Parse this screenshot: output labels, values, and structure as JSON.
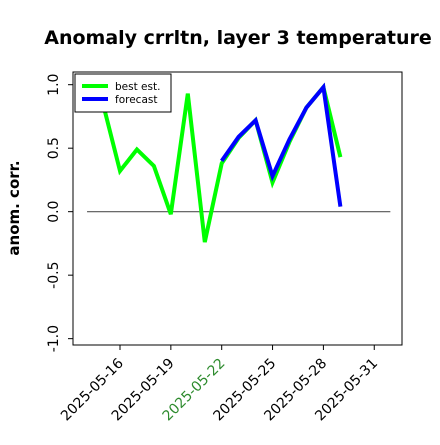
{
  "chart_data": {
    "type": "line",
    "title": "Anomaly crrltn, layer 3 temperature",
    "xlabel": "",
    "ylabel": "anom. corr.",
    "ylim": [
      -1.05,
      1.1
    ],
    "yticks": [
      {
        "value": -1.0,
        "label": "-1.0"
      },
      {
        "value": -0.5,
        "label": "-0.5"
      },
      {
        "value": 0.0,
        "label": "0.0"
      },
      {
        "value": 0.5,
        "label": "0.5"
      },
      {
        "value": 1.0,
        "label": "1.0"
      }
    ],
    "xticks": [
      "2025-05-16",
      "2025-05-19",
      "2025-05-22",
      "2025-05-25",
      "2025-05-28",
      "2025-05-31"
    ],
    "highlighted_tick": "2025-05-22",
    "highlight_color": "#2e8b2e",
    "reference_line": 0.0,
    "grid": false,
    "legend_position": "upper-left",
    "series": [
      {
        "name": "best est.",
        "color": "#00ff00",
        "points": [
          [
            "2025-05-15",
            0.85
          ],
          [
            "2025-05-16",
            0.32
          ],
          [
            "2025-05-17",
            0.49
          ],
          [
            "2025-05-18",
            0.36
          ],
          [
            "2025-05-19",
            -0.02
          ],
          [
            "2025-05-20",
            0.93
          ],
          [
            "2025-05-21",
            -0.24
          ],
          [
            "2025-05-22",
            0.38
          ],
          [
            "2025-05-23",
            0.58
          ],
          [
            "2025-05-24",
            0.72
          ],
          [
            "2025-05-25",
            0.23
          ],
          [
            "2025-05-26",
            0.55
          ],
          [
            "2025-05-27",
            0.82
          ],
          [
            "2025-05-28",
            0.98
          ],
          [
            "2025-05-29",
            0.43
          ]
        ]
      },
      {
        "name": "forecast",
        "color": "#0000ff",
        "points": [
          [
            "2025-05-22",
            0.4
          ],
          [
            "2025-05-23",
            0.59
          ],
          [
            "2025-05-24",
            0.72
          ],
          [
            "2025-05-25",
            0.28
          ],
          [
            "2025-05-26",
            0.57
          ],
          [
            "2025-05-27",
            0.82
          ],
          [
            "2025-05-28",
            0.98
          ],
          [
            "2025-05-29",
            0.04
          ]
        ]
      }
    ]
  }
}
